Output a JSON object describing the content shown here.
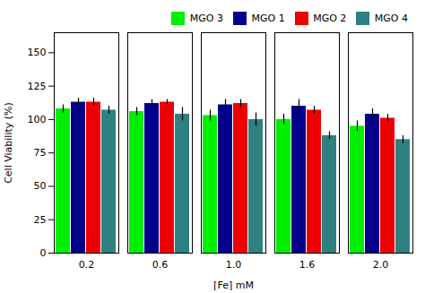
{
  "chart_data": {
    "type": "bar",
    "xlabel": "[Fe] mM",
    "ylabel": "Cell Viability (%)",
    "categories": [
      "0.2",
      "0.6",
      "1.0",
      "1.6",
      "2.0"
    ],
    "series": [
      {
        "name": "MGO 3",
        "color": "#00EE00",
        "values": [
          108,
          106,
          103,
          100,
          95
        ],
        "errors": [
          3,
          3,
          4,
          4,
          4
        ]
      },
      {
        "name": "MGO 1",
        "color": "#00008B",
        "values": [
          113,
          112,
          111,
          110,
          104
        ],
        "errors": [
          3,
          3,
          4,
          5,
          4
        ]
      },
      {
        "name": "MGO 2",
        "color": "#EE0000",
        "values": [
          113,
          113,
          112,
          107,
          101
        ],
        "errors": [
          3,
          2,
          3,
          3,
          3
        ]
      },
      {
        "name": "MGO 4",
        "color": "#2F8080",
        "values": [
          107,
          104,
          100,
          88,
          85
        ],
        "errors": [
          3,
          5,
          5,
          3,
          3
        ]
      }
    ],
    "ylim": [
      0,
      165
    ],
    "yticks": [
      0,
      25,
      50,
      75,
      100,
      125,
      150
    ],
    "grid": false,
    "legend": "upper right"
  }
}
